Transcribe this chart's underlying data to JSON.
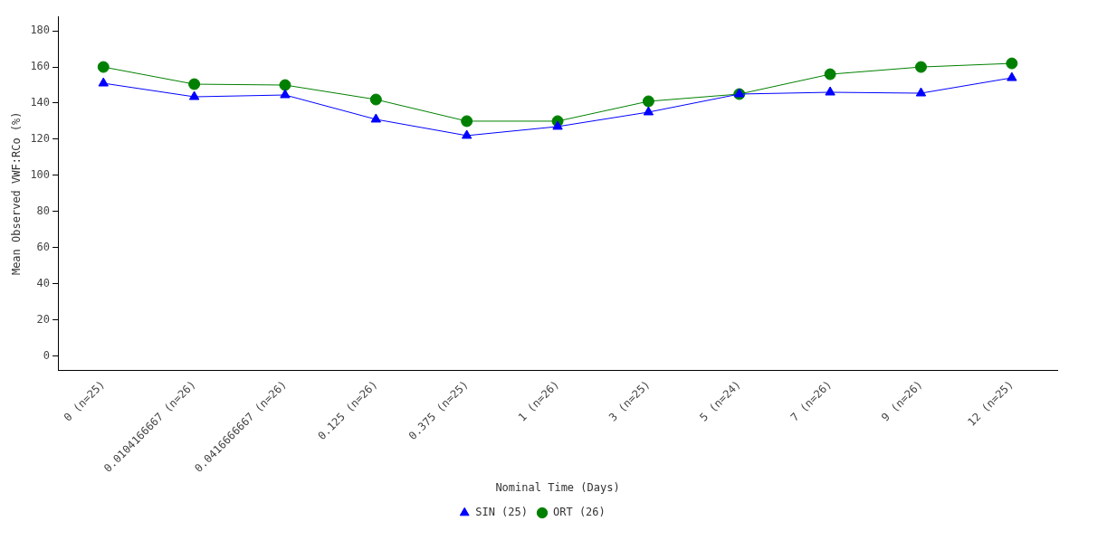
{
  "chart_data": {
    "type": "line",
    "xlabel": "Nominal Time (Days)",
    "ylabel": "Mean Observed VWF:RCo (%)",
    "categories": [
      "0 (n=25)",
      "0.0104166667 (n=26)",
      "0.0416666667 (n=26)",
      "0.125 (n=26)",
      "0.375 (n=25)",
      "1 (n=26)",
      "3 (n=25)",
      "5 (n=24)",
      "7 (n=26)",
      "9 (n=26)",
      "12 (n=25)"
    ],
    "series": [
      {
        "name": "ORT (26)",
        "color": "#008000",
        "marker": "circle",
        "values": [
          160,
          150.5,
          150,
          142,
          130,
          130,
          141,
          145,
          156,
          160,
          162
        ]
      },
      {
        "name": "SIN (25)",
        "color": "#0000ff",
        "marker": "triangle",
        "values": [
          151,
          143.5,
          144.5,
          131,
          122,
          127,
          135,
          145,
          146,
          145.5,
          154
        ]
      }
    ],
    "ylim": [
      -8,
      188
    ],
    "yticks": [
      0,
      20,
      40,
      60,
      80,
      100,
      120,
      140,
      160,
      180
    ],
    "grid": false,
    "legend": "bottom"
  }
}
